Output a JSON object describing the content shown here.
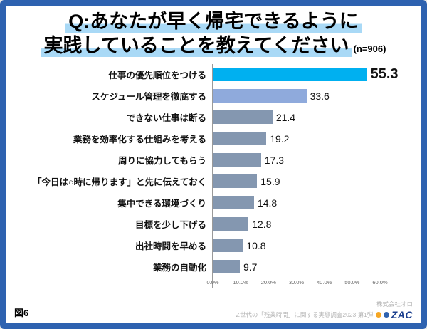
{
  "title": {
    "line1": "Q:あなたが早く帰宅できるように",
    "line2": "実践していることを教えてください",
    "sample_size": "(n=906)"
  },
  "chart_data": {
    "type": "bar",
    "orientation": "horizontal",
    "title": "Q:あなたが早く帰宅できるように実践していることを教えてください",
    "sample_size_n": 906,
    "categories": [
      "仕事の優先順位をつける",
      "スケジュール管理を徹底する",
      "できない仕事は断る",
      "業務を効率化する仕組みを考える",
      "周りに協力してもらう",
      "「今日は○時に帰ります」と先に伝えておく",
      "集中できる環境づくり",
      "目標を少し下げる",
      "出社時間を早める",
      "業務の自動化"
    ],
    "values": [
      55.3,
      33.6,
      21.4,
      19.2,
      17.3,
      15.9,
      14.8,
      12.8,
      10.8,
      9.7
    ],
    "value_labels": [
      "55.3",
      "33.6",
      "21.4",
      "19.2",
      "17.3",
      "15.9",
      "14.8",
      "12.8",
      "10.8",
      "9.7"
    ],
    "bar_colors": [
      "#00b0f0",
      "#8faadc",
      "#8497b0",
      "#8497b0",
      "#8497b0",
      "#8497b0",
      "#8497b0",
      "#8497b0",
      "#8497b0",
      "#8497b0"
    ],
    "xlabel": "",
    "ylabel": "",
    "xlim": [
      0,
      60
    ],
    "x_ticks": [
      "0.0%",
      "10.0%",
      "20.0%",
      "30.0%",
      "40.0%",
      "50.0%",
      "60.0%"
    ],
    "grid": false,
    "legend": "none"
  },
  "footer": {
    "figure_label": "図6",
    "survey_note": "Z世代の「残業時間」に関する実態調査2023 第1弾",
    "company": "株式会社オロ",
    "logo_text": "ZAC"
  },
  "colors": {
    "frame_border": "#2e62b0",
    "title_highlight": "#a9d9f6",
    "bar_primary": "#00b0f0",
    "bar_secondary": "#8faadc",
    "bar_default": "#8497b0"
  }
}
